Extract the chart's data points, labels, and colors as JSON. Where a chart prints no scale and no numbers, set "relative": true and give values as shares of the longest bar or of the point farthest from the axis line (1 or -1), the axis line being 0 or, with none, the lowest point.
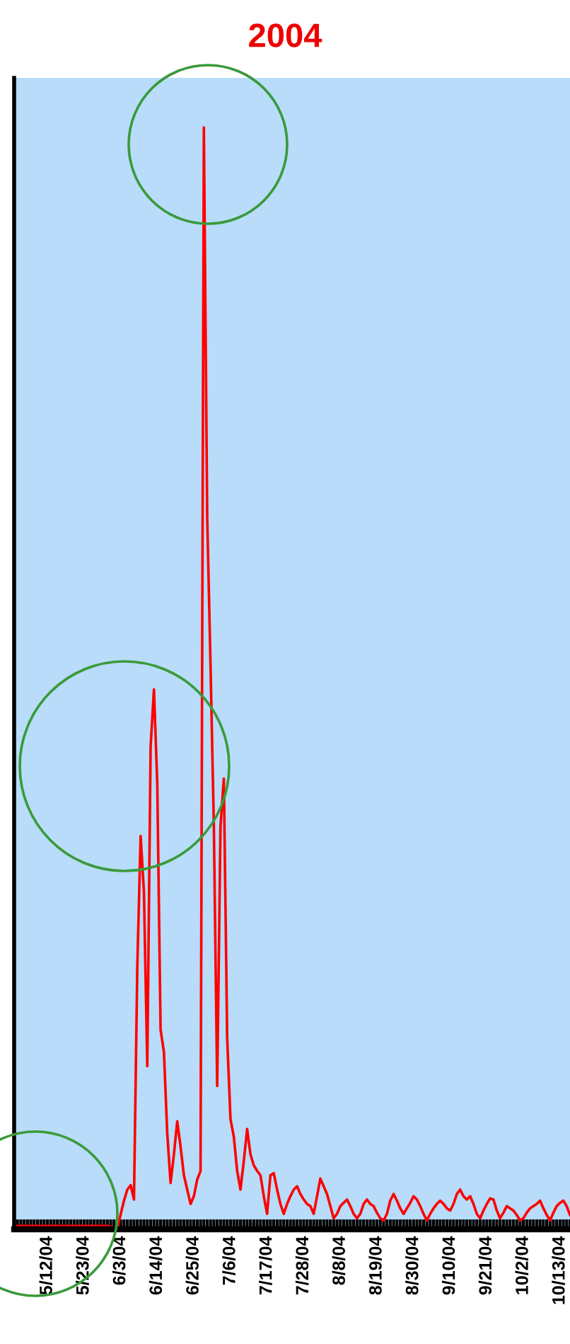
{
  "chart_data": {
    "type": "line",
    "title": "2004",
    "relative": true,
    "marker": "none",
    "line_style": "solid",
    "xlim": [
      "2004-05-02",
      "2004-10-16"
    ],
    "xticks": [
      {
        "value": "2004-05-12",
        "label": "5/12/04"
      },
      {
        "value": "2004-05-23",
        "label": "5/23/04"
      },
      {
        "value": "2004-06-03",
        "label": "6/3/04"
      },
      {
        "value": "2004-06-14",
        "label": "6/14/04"
      },
      {
        "value": "2004-06-25",
        "label": "6/25/04"
      },
      {
        "value": "2004-07-06",
        "label": "7/6/04"
      },
      {
        "value": "2004-07-17",
        "label": "7/17/04"
      },
      {
        "value": "2004-07-28",
        "label": "7/28/04"
      },
      {
        "value": "2004-08-08",
        "label": "8/8/04"
      },
      {
        "value": "2004-08-19",
        "label": "8/19/04"
      },
      {
        "value": "2004-08-30",
        "label": "8/30/04"
      },
      {
        "value": "2004-09-10",
        "label": "9/10/04"
      },
      {
        "value": "2004-09-21",
        "label": "9/21/04"
      },
      {
        "value": "2004-10-02",
        "label": "10/2/04"
      },
      {
        "value": "2004-10-13",
        "label": "10/13/04"
      }
    ],
    "series": [
      {
        "color": "#ff0000",
        "x": [
          "2004-05-02",
          "2004-05-19",
          "2004-05-30",
          "2004-06-02",
          "2004-06-04",
          "2004-06-05",
          "2004-06-06",
          "2004-06-07",
          "2004-06-08",
          "2004-06-09",
          "2004-06-10",
          "2004-06-11",
          "2004-06-12",
          "2004-06-13",
          "2004-06-14",
          "2004-06-15",
          "2004-06-16",
          "2004-06-17",
          "2004-06-18",
          "2004-06-19",
          "2004-06-20",
          "2004-06-21",
          "2004-06-22",
          "2004-06-23",
          "2004-06-24",
          "2004-06-25",
          "2004-06-26",
          "2004-06-27",
          "2004-06-28",
          "2004-06-29",
          "2004-06-30",
          "2004-07-01",
          "2004-07-02",
          "2004-07-03",
          "2004-07-04",
          "2004-07-05",
          "2004-07-06",
          "2004-07-07",
          "2004-07-08",
          "2004-07-09",
          "2004-07-10",
          "2004-07-11",
          "2004-07-12",
          "2004-07-13",
          "2004-07-14",
          "2004-07-15",
          "2004-07-16",
          "2004-07-17",
          "2004-07-18",
          "2004-07-19",
          "2004-07-20",
          "2004-07-21",
          "2004-07-22",
          "2004-07-23",
          "2004-07-24",
          "2004-07-25",
          "2004-07-26",
          "2004-07-27",
          "2004-07-28",
          "2004-07-29",
          "2004-07-30",
          "2004-07-31",
          "2004-08-01",
          "2004-08-02",
          "2004-08-03",
          "2004-08-04",
          "2004-08-05",
          "2004-08-06",
          "2004-08-07",
          "2004-08-08",
          "2004-08-09",
          "2004-08-10",
          "2004-08-11",
          "2004-08-12",
          "2004-08-13",
          "2004-08-14",
          "2004-08-15",
          "2004-08-16",
          "2004-08-17",
          "2004-08-18",
          "2004-08-19",
          "2004-08-20",
          "2004-08-21",
          "2004-08-22",
          "2004-08-23",
          "2004-08-24",
          "2004-08-25",
          "2004-08-26",
          "2004-08-27",
          "2004-08-28",
          "2004-08-29",
          "2004-08-30",
          "2004-08-31",
          "2004-09-01",
          "2004-09-02",
          "2004-09-03",
          "2004-09-04",
          "2004-09-05",
          "2004-09-06",
          "2004-09-07",
          "2004-09-08",
          "2004-09-09",
          "2004-09-10",
          "2004-09-11",
          "2004-09-12",
          "2004-09-13",
          "2004-09-14",
          "2004-09-15",
          "2004-09-16",
          "2004-09-17",
          "2004-09-18",
          "2004-09-19",
          "2004-09-20",
          "2004-09-21",
          "2004-09-22",
          "2004-09-23",
          "2004-09-24",
          "2004-09-25",
          "2004-09-26",
          "2004-09-27",
          "2004-09-28",
          "2004-09-29",
          "2004-09-30",
          "2004-10-01",
          "2004-10-02",
          "2004-10-03",
          "2004-10-04",
          "2004-10-05",
          "2004-10-06",
          "2004-10-07",
          "2004-10-08",
          "2004-10-09",
          "2004-10-10",
          "2004-10-11",
          "2004-10-12",
          "2004-10-13",
          "2004-10-14",
          "2004-10-15",
          "2004-10-16"
        ],
        "values": [
          0.003,
          0.003,
          0.003,
          0.001,
          0.026,
          0.036,
          0.04,
          0.027,
          0.238,
          0.357,
          0.306,
          0.148,
          0.438,
          0.49,
          0.405,
          0.181,
          0.161,
          0.087,
          0.042,
          0.068,
          0.098,
          0.075,
          0.049,
          0.036,
          0.023,
          0.03,
          0.045,
          0.053,
          1.0,
          0.647,
          0.512,
          0.366,
          0.13,
          0.366,
          0.409,
          0.174,
          0.1,
          0.084,
          0.053,
          0.036,
          0.062,
          0.091,
          0.068,
          0.058,
          0.053,
          0.049,
          0.03,
          0.014,
          0.049,
          0.051,
          0.036,
          0.023,
          0.014,
          0.023,
          0.03,
          0.036,
          0.039,
          0.032,
          0.027,
          0.023,
          0.021,
          0.014,
          0.03,
          0.046,
          0.039,
          0.032,
          0.021,
          0.01,
          0.014,
          0.021,
          0.024,
          0.027,
          0.021,
          0.014,
          0.01,
          0.014,
          0.023,
          0.027,
          0.023,
          0.021,
          0.015,
          0.01,
          0.008,
          0.014,
          0.026,
          0.032,
          0.026,
          0.019,
          0.014,
          0.019,
          0.024,
          0.03,
          0.027,
          0.021,
          0.014,
          0.008,
          0.014,
          0.019,
          0.023,
          0.026,
          0.023,
          0.019,
          0.017,
          0.023,
          0.032,
          0.036,
          0.03,
          0.027,
          0.03,
          0.023,
          0.014,
          0.01,
          0.017,
          0.023,
          0.028,
          0.027,
          0.017,
          0.01,
          0.015,
          0.021,
          0.019,
          0.017,
          0.013,
          0.008,
          0.01,
          0.015,
          0.019,
          0.021,
          0.023,
          0.026,
          0.019,
          0.013,
          0.008,
          0.015,
          0.021,
          0.024,
          0.026,
          0.021,
          0.013
        ]
      }
    ]
  }
}
